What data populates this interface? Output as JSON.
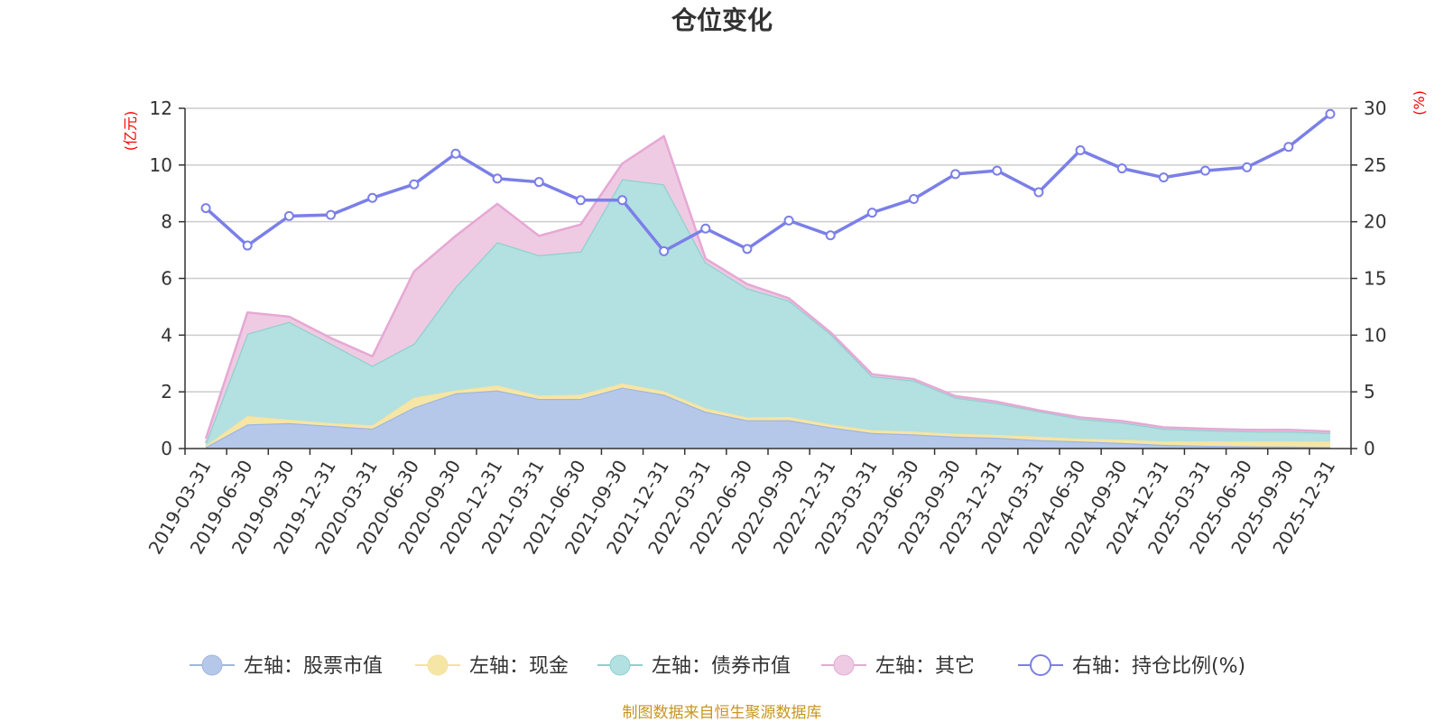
{
  "chart_data": {
    "type": "area",
    "title": "仓位变化",
    "source_note": "制图数据来自恒生聚源数据库",
    "left_axis": {
      "unit": "(亿元)",
      "min": 0,
      "max": 12,
      "ticks": [
        "0",
        "2",
        "4",
        "6",
        "8",
        "10",
        "12"
      ]
    },
    "right_axis": {
      "unit": "(%)",
      "min": 0,
      "max": 30,
      "ticks": [
        "0",
        "5",
        "10",
        "15",
        "20",
        "25",
        "30"
      ]
    },
    "categories": [
      "2019-03-31",
      "2019-06-30",
      "2019-09-30",
      "2019-12-31",
      "2020-03-31",
      "2020-06-30",
      "2020-09-30",
      "2020-12-31",
      "2021-03-31",
      "2021-06-30",
      "2021-09-30",
      "2021-12-31",
      "2022-03-31",
      "2022-06-30",
      "2022-09-30",
      "2022-12-31",
      "2023-03-31",
      "2023-06-30",
      "2023-09-30",
      "2023-12-31",
      "2024-03-31",
      "2024-06-30",
      "2024-09-30",
      "2024-12-31",
      "2025-03-31",
      "2025-06-30",
      "2025-09-30",
      "2025-12-31"
    ],
    "series": [
      {
        "name": "左轴：股票市值",
        "axis": "left",
        "kind": "stacked-area",
        "color": "#9fb6e0",
        "fill": "#b5c8ea",
        "values": [
          0.05,
          0.85,
          0.9,
          0.8,
          0.7,
          1.45,
          1.95,
          2.05,
          1.75,
          1.75,
          2.15,
          1.9,
          1.3,
          1.0,
          1.0,
          0.75,
          0.55,
          0.5,
          0.42,
          0.38,
          0.3,
          0.25,
          0.2,
          0.13,
          0.1,
          0.08,
          0.07,
          0.05
        ]
      },
      {
        "name": "左轴：现金",
        "axis": "left",
        "kind": "stacked-area",
        "color": "#f5e2a0",
        "fill": "#f6e6a6",
        "values": [
          0.05,
          0.3,
          0.12,
          0.1,
          0.12,
          0.35,
          0.1,
          0.18,
          0.12,
          0.15,
          0.15,
          0.12,
          0.12,
          0.1,
          0.12,
          0.1,
          0.1,
          0.1,
          0.1,
          0.1,
          0.12,
          0.1,
          0.12,
          0.12,
          0.15,
          0.17,
          0.18,
          0.2
        ]
      },
      {
        "name": "左轴：债券市值",
        "axis": "left",
        "kind": "stacked-area",
        "color": "#8fd0d0",
        "fill": "#b3e0e0",
        "values": [
          0.1,
          2.9,
          3.45,
          2.8,
          2.1,
          1.9,
          3.65,
          5.05,
          4.95,
          5.05,
          7.2,
          7.3,
          5.15,
          4.55,
          4.1,
          3.2,
          1.9,
          1.8,
          1.28,
          1.12,
          0.9,
          0.7,
          0.6,
          0.45,
          0.4,
          0.36,
          0.35,
          0.3
        ]
      },
      {
        "name": "左轴：其它",
        "axis": "left",
        "kind": "stacked-area",
        "color": "#e6a8d4",
        "fill": "#eecbe3",
        "values": [
          0.15,
          0.75,
          0.18,
          0.2,
          0.33,
          2.55,
          1.8,
          1.35,
          0.68,
          0.95,
          0.55,
          1.7,
          0.13,
          0.15,
          0.08,
          0.05,
          0.07,
          0.05,
          0.05,
          0.05,
          0.03,
          0.05,
          0.05,
          0.05,
          0.05,
          0.05,
          0.06,
          0.05
        ]
      },
      {
        "name": "右轴：持仓比例(%)",
        "axis": "right",
        "kind": "line",
        "color": "#7b7fe8",
        "values": [
          21.2,
          17.9,
          20.5,
          20.6,
          22.1,
          23.3,
          26.0,
          23.8,
          23.5,
          21.9,
          21.9,
          17.4,
          19.4,
          17.6,
          20.1,
          18.8,
          20.8,
          22.0,
          24.2,
          24.5,
          22.6,
          26.3,
          24.7,
          23.9,
          24.5,
          24.8,
          26.6,
          29.5
        ]
      }
    ]
  }
}
